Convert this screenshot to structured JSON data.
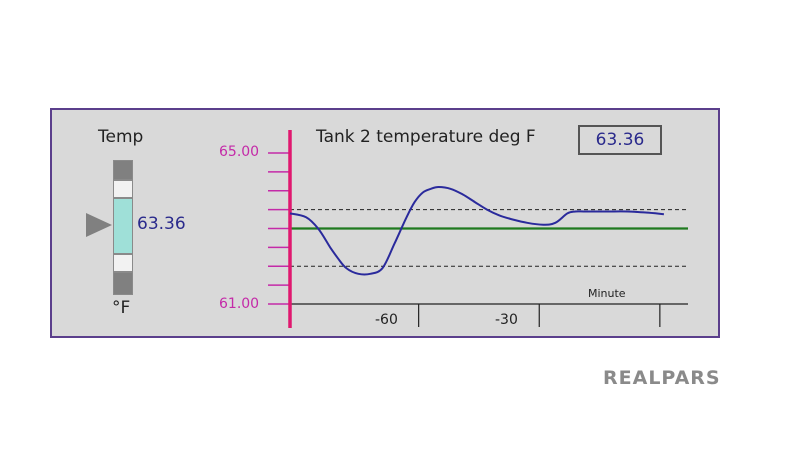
{
  "bargraph": {
    "title": "Temp",
    "unit": "°F",
    "value": "63.36",
    "level": 63.36,
    "range": [
      61.0,
      65.0
    ]
  },
  "trend": {
    "title": "Tank 2 temperature deg F",
    "current_value": "63.36"
  },
  "chart_data": {
    "type": "line",
    "title": "Tank 2 temperature deg F",
    "xlabel": "Minute",
    "ylabel": "",
    "y_tick_labels": [
      "65.00",
      "61.00"
    ],
    "x_tick_labels": [
      "-60",
      "-30"
    ],
    "ylim": [
      61.0,
      65.0
    ],
    "xlim": [
      -92,
      7
    ],
    "setpoint": 63.0,
    "limits": {
      "high": 63.5,
      "low": 62.0
    },
    "series": [
      {
        "x": [
          -92,
          -88,
          -85,
          -82,
          -80,
          -78,
          -75,
          -72,
          -69,
          -66,
          -63,
          -61,
          -59,
          -57,
          -55,
          -52,
          -49,
          -46,
          -43,
          -40,
          -37,
          -33,
          -29,
          -26,
          -23,
          -21,
          -19,
          -17,
          -13,
          -8,
          -3,
          1
        ],
        "y": [
          63.4,
          63.3,
          63.0,
          62.5,
          62.2,
          61.95,
          61.8,
          61.8,
          61.95,
          62.6,
          63.3,
          63.7,
          63.95,
          64.05,
          64.1,
          64.05,
          63.9,
          63.7,
          63.5,
          63.35,
          63.25,
          63.15,
          63.1,
          63.15,
          63.4,
          63.45,
          63.45,
          63.45,
          63.45,
          63.45,
          63.42,
          63.38
        ]
      }
    ],
    "colors": {
      "trend_line": "#2a2a9c",
      "setpoint": "#1f7a1f",
      "y_axis": "#e0186f",
      "y_ticks": "#c42aa8",
      "limits": "#222222"
    },
    "grid": false
  },
  "logo": {
    "text": "REALPARS"
  }
}
